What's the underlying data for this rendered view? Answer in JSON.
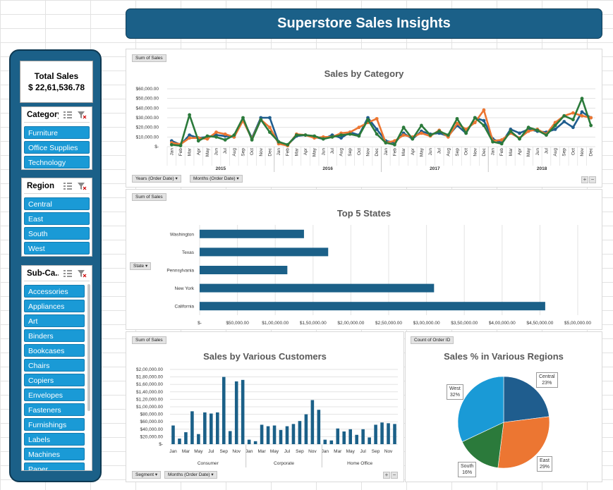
{
  "header": {
    "title": "Superstore Sales Insights"
  },
  "total": {
    "label": "Total Sales",
    "value": "$ 22,61,536.78"
  },
  "slicers": {
    "category": {
      "title": "Category",
      "items": [
        "Furniture",
        "Office Supplies",
        "Technology"
      ]
    },
    "region": {
      "title": "Region",
      "items": [
        "Central",
        "East",
        "South",
        "West"
      ]
    },
    "subcategory": {
      "title": "Sub-Ca...",
      "items": [
        "Accessories",
        "Appliances",
        "Art",
        "Binders",
        "Bookcases",
        "Chairs",
        "Copiers",
        "Envelopes",
        "Fasteners",
        "Furnishings",
        "Labels",
        "Machines",
        "Paper"
      ]
    }
  },
  "line_panel": {
    "field": "Sum of Sales",
    "filters": [
      "Years (Order Date)",
      "Months (Order Date)"
    ]
  },
  "bar_panel": {
    "field": "Sum of Sales",
    "filter": "State"
  },
  "col_panel": {
    "field": "Sum of Sales",
    "filters": [
      "Segment",
      "Months (Order Date)"
    ]
  },
  "pie_panel": {
    "field": "Count of Order ID"
  },
  "chart_data": [
    {
      "type": "line",
      "title": "Sales by Category",
      "months": [
        "Jan",
        "Feb",
        "Mar",
        "Apr",
        "May",
        "Jun",
        "Jul",
        "Aug",
        "Sep",
        "Oct",
        "Nov",
        "Dec"
      ],
      "years": [
        "2015",
        "2016",
        "2017",
        "2018"
      ],
      "y_ticks": [
        "$-",
        "$10,000.00",
        "$20,000.00",
        "$30,000.00",
        "$40,000.00",
        "$50,000.00",
        "$60,000.00"
      ],
      "ylim": [
        0,
        60000
      ],
      "series": [
        {
          "color": "#1f5d8e",
          "values": [
            6000,
            2000,
            12000,
            9000,
            10000,
            12000,
            11000,
            10000,
            28000,
            9000,
            30000,
            30000,
            4000,
            2000,
            11000,
            12000,
            10000,
            8000,
            12000,
            9000,
            15000,
            12000,
            30000,
            18000,
            6000,
            4000,
            14000,
            8000,
            16000,
            13000,
            14000,
            11000,
            22000,
            14000,
            30000,
            27000,
            8000,
            4000,
            18000,
            14000,
            18000,
            16000,
            15000,
            18000,
            26000,
            20000,
            36000,
            30000
          ]
        },
        {
          "color": "#ec7632",
          "values": [
            4000,
            2500,
            9000,
            9000,
            8000,
            15000,
            13000,
            10000,
            27000,
            8000,
            28000,
            20000,
            3000,
            1000,
            13000,
            12000,
            9000,
            10000,
            10000,
            14000,
            15000,
            20000,
            25000,
            29000,
            4000,
            6000,
            12000,
            10000,
            14000,
            11000,
            17000,
            10000,
            24000,
            18000,
            25000,
            38000,
            6000,
            7000,
            14000,
            9000,
            16000,
            18000,
            13000,
            25000,
            32000,
            35000,
            32000,
            30000
          ]
        },
        {
          "color": "#2b7a3b",
          "values": [
            2000,
            1000,
            33000,
            6000,
            11000,
            10000,
            7000,
            12000,
            30000,
            7000,
            28000,
            15000,
            5000,
            2000,
            12000,
            12000,
            11000,
            8000,
            10000,
            12000,
            13000,
            11000,
            28000,
            13000,
            4000,
            2000,
            20000,
            8000,
            22000,
            12000,
            16000,
            12000,
            29000,
            14000,
            30000,
            22000,
            5000,
            3000,
            16000,
            8000,
            20000,
            17000,
            12000,
            22000,
            32000,
            28000,
            50000,
            22000
          ]
        }
      ]
    },
    {
      "type": "bar",
      "title": "Top 5 States",
      "categories": [
        "Washington",
        "Texas",
        "Pennsylvania",
        "New York",
        "California"
      ],
      "values": [
        138000,
        170000,
        116000,
        310000,
        457000
      ],
      "x_ticks": [
        "$-",
        "$50,000.00",
        "$1,00,000.00",
        "$1,50,000.00",
        "$2,00,000.00",
        "$2,50,000.00",
        "$3,00,000.00",
        "$3,50,000.00",
        "$4,00,000.00",
        "$4,50,000.00",
        "$5,00,000.00"
      ],
      "xlim": [
        0,
        500000
      ]
    },
    {
      "type": "bar",
      "title": "Sales by Various Customers",
      "groups": [
        "Consumer",
        "Corporate",
        "Home Office"
      ],
      "month_labels": [
        "Jan",
        "Mar",
        "May",
        "Jul",
        "Sep",
        "Nov",
        "Jan",
        "Mar",
        "May",
        "Jul",
        "Sep",
        "Nov",
        "Jan",
        "Mar",
        "May",
        "Jul",
        "Sep",
        "Nov"
      ],
      "y_ticks": [
        "$-",
        "$20,000.00",
        "$40,000.00",
        "$60,000.00",
        "$80,000.00",
        "$1,00,000.00",
        "$1,20,000.00",
        "$1,40,000.00",
        "$1,60,000.00",
        "$1,80,000.00",
        "$2,00,000.00"
      ],
      "ylim": [
        0,
        200000
      ],
      "values": [
        50000,
        15000,
        32000,
        88000,
        27000,
        85000,
        82000,
        85000,
        180000,
        35000,
        168000,
        172000,
        12000,
        8000,
        52000,
        48000,
        50000,
        38000,
        48000,
        54000,
        62000,
        80000,
        118000,
        92000,
        12000,
        10000,
        42000,
        34000,
        40000,
        25000,
        40000,
        18000,
        52000,
        58000,
        56000,
        54000
      ]
    },
    {
      "type": "pie",
      "title": "Sales % in Various Regions",
      "slices": [
        {
          "label": "Central",
          "value": 23,
          "text": "23%",
          "color": "#1f5d8e"
        },
        {
          "label": "East",
          "value": 29,
          "text": "29%",
          "color": "#ec7632"
        },
        {
          "label": "South",
          "value": 16,
          "text": "16%",
          "color": "#2b7a3b"
        },
        {
          "label": "West",
          "value": 32,
          "text": "32%",
          "color": "#1a9ad6"
        }
      ]
    }
  ]
}
